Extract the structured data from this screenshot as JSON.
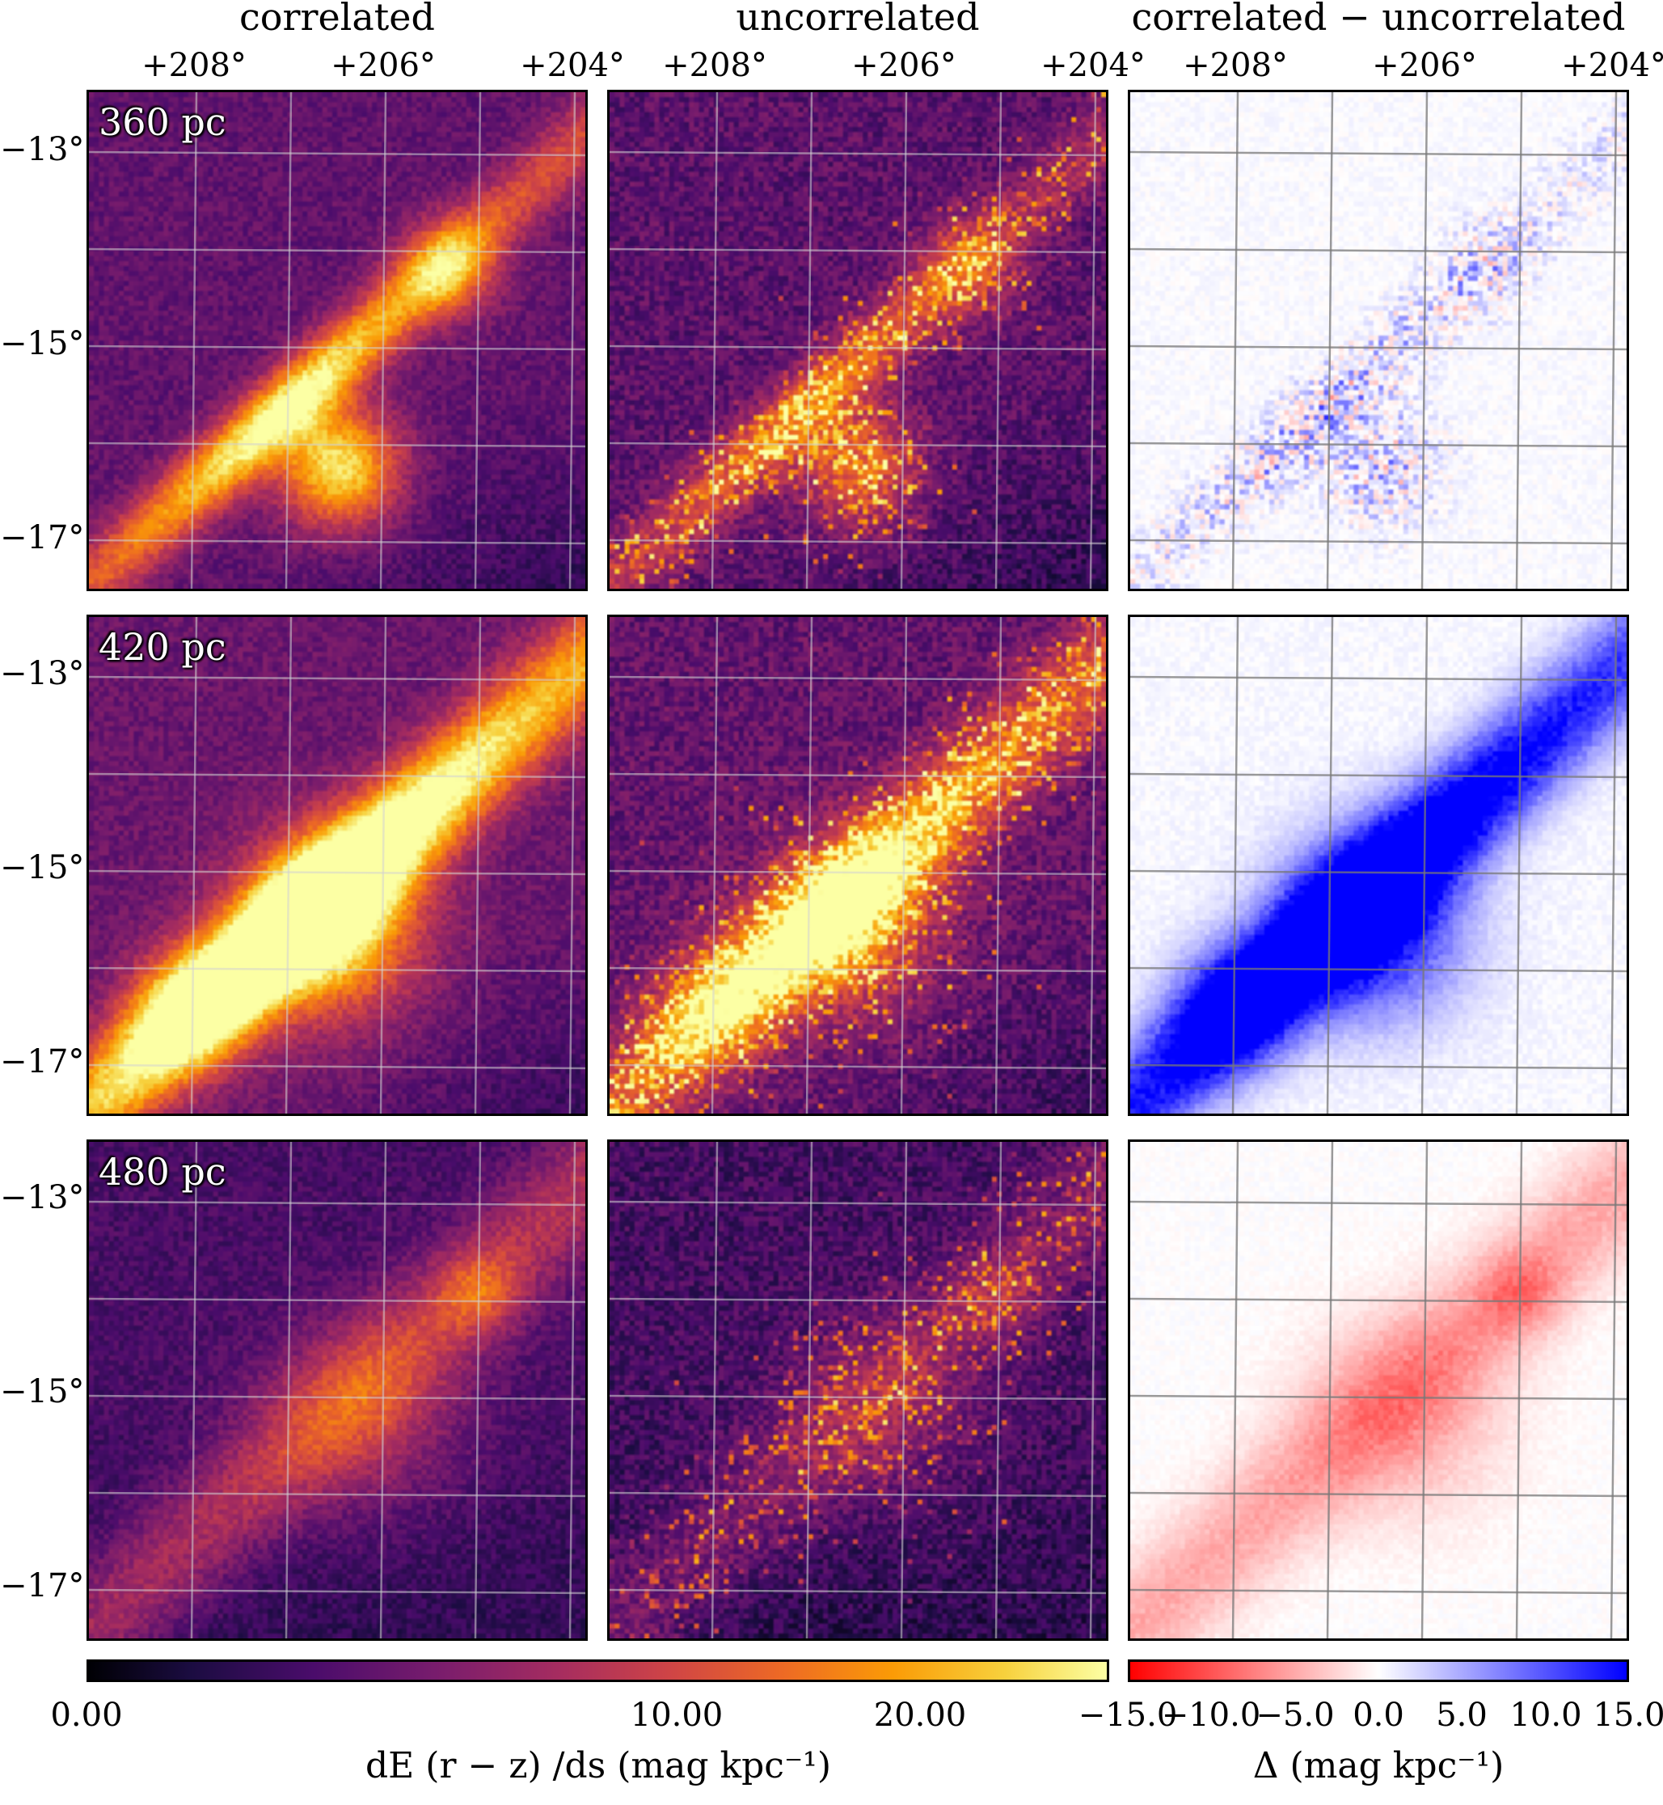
{
  "columns": [
    {
      "title": "correlated"
    },
    {
      "title": "uncorrelated"
    },
    {
      "title": "correlated − uncorrelated"
    }
  ],
  "x_ticks": [
    "+208°",
    "+206°",
    "+204°"
  ],
  "y_ticks": [
    "−13°",
    "−15°",
    "−17°"
  ],
  "rows": [
    {
      "distance": "360 pc"
    },
    {
      "distance": "420 pc"
    },
    {
      "distance": "480 pc"
    }
  ],
  "colorbar_main": {
    "colormap": "inferno",
    "ticks": [
      "0.00",
      "10.00",
      "20.00"
    ],
    "tick_values": [
      0,
      10,
      20
    ],
    "label": "dE (r − z) /ds  (mag kpc⁻¹)"
  },
  "colorbar_diff": {
    "colormap": "bwr_r",
    "colors": [
      "#ff0000",
      "#ffffff",
      "#0000ff"
    ],
    "ticks": [
      "−15.0",
      "−10.0",
      "−5.0",
      "0.0",
      "5.0",
      "10.0",
      "15.0"
    ],
    "tick_values": [
      -15,
      -10,
      -5,
      0,
      5,
      10,
      15
    ],
    "label": "Δ  (mag kpc⁻¹)"
  }
}
